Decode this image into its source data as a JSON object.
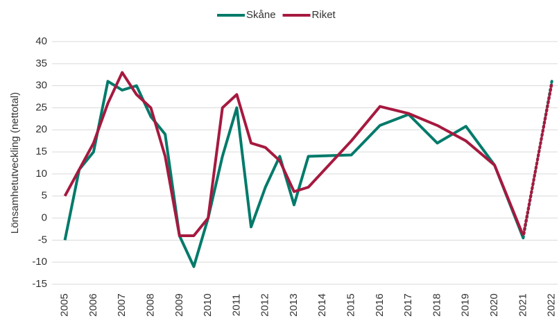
{
  "chart_data": {
    "type": "line",
    "y_label": "Lönsamhetutveckling (nettotal)",
    "xlim": [
      2004.55,
      2022.25
    ],
    "xticks": [
      2005,
      2006,
      2007,
      2008,
      2009,
      2010,
      2011,
      2012,
      2013,
      2014,
      2015,
      2016,
      2017,
      2018,
      2019,
      2020,
      2021,
      2022
    ],
    "ylim": [
      -15,
      40
    ],
    "yticks": [
      -15,
      -10,
      -5,
      0,
      5,
      10,
      15,
      20,
      25,
      30,
      35,
      40
    ],
    "grid": true,
    "legend": "top",
    "series": [
      {
        "name": "Skåne",
        "color": "#007a6a",
        "x": [
          2005,
          2005.5,
          2006,
          2006.5,
          2007,
          2007.5,
          2008,
          2008.5,
          2009,
          2009.5,
          2010,
          2010.5,
          2011,
          2011.5,
          2012,
          2012.5,
          2013,
          2013.5,
          2015,
          2016,
          2017,
          2018,
          2019,
          2020,
          2021
        ],
        "values": [
          -5,
          11,
          15,
          31,
          29,
          30,
          23,
          19,
          -4,
          -11,
          0,
          14,
          25,
          -2,
          7,
          14,
          3,
          14,
          14.3,
          21,
          23.5,
          17,
          20.8,
          12,
          -4.5
        ],
        "forecast_x": [
          2021,
          2022
        ],
        "forecast_values": [
          -4.5,
          31
        ]
      },
      {
        "name": "Riket",
        "color": "#a6193f",
        "x": [
          2005,
          2006,
          2006.5,
          2007,
          2007.5,
          2008,
          2008.5,
          2009,
          2009.5,
          2010,
          2010.5,
          2011,
          2011.5,
          2012,
          2012.5,
          2013,
          2013.5,
          2015,
          2016,
          2017,
          2018,
          2019,
          2020,
          2021
        ],
        "values": [
          5,
          17,
          26,
          33,
          28,
          25,
          14,
          -4,
          -4,
          0,
          25,
          28,
          17,
          16,
          13,
          6,
          7,
          17.5,
          25.3,
          23.7,
          21,
          17.5,
          12,
          -4
        ],
        "forecast_x": [
          2021,
          2022
        ],
        "forecast_values": [
          -4,
          30.5
        ]
      }
    ]
  }
}
